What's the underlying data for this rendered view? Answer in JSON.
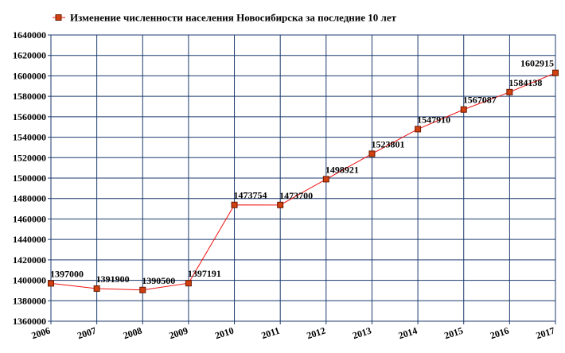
{
  "chart_data": {
    "type": "line",
    "title": "Изменение численности населения Новосибирска за последние 10 лет",
    "x": [
      "2006",
      "2007",
      "2008",
      "2009",
      "2010",
      "2011",
      "2012",
      "2013",
      "2014",
      "2015",
      "2016",
      "2017"
    ],
    "series": [
      {
        "name": "Изменение численности населения Новосибирска за последние 10 лет",
        "values": [
          1397000,
          1391900,
          1390500,
          1397191,
          1473754,
          1473700,
          1498921,
          1523801,
          1547910,
          1567087,
          1584138,
          1602915
        ],
        "labels": [
          "1397000",
          "1391900",
          "1390500",
          "1397191",
          "1473754",
          "1473700",
          "1498921",
          "1523801",
          "1547910",
          "1567087",
          "1584138",
          "1602915"
        ]
      }
    ],
    "ylim": [
      1360000,
      1640000
    ],
    "ytick_step": 20000,
    "y_ticks": [
      "1360000",
      "1380000",
      "1400000",
      "1420000",
      "1440000",
      "1460000",
      "1480000",
      "1500000",
      "1520000",
      "1540000",
      "1560000",
      "1580000",
      "1600000",
      "1620000",
      "1640000"
    ],
    "xlabel": "",
    "ylabel": "",
    "grid": true,
    "legend_position": "top-left",
    "colors": {
      "line": "#f01010",
      "marker_fill": "#d04010",
      "marker_stroke": "#6a1a00",
      "grid": "#1c3a6e"
    }
  }
}
